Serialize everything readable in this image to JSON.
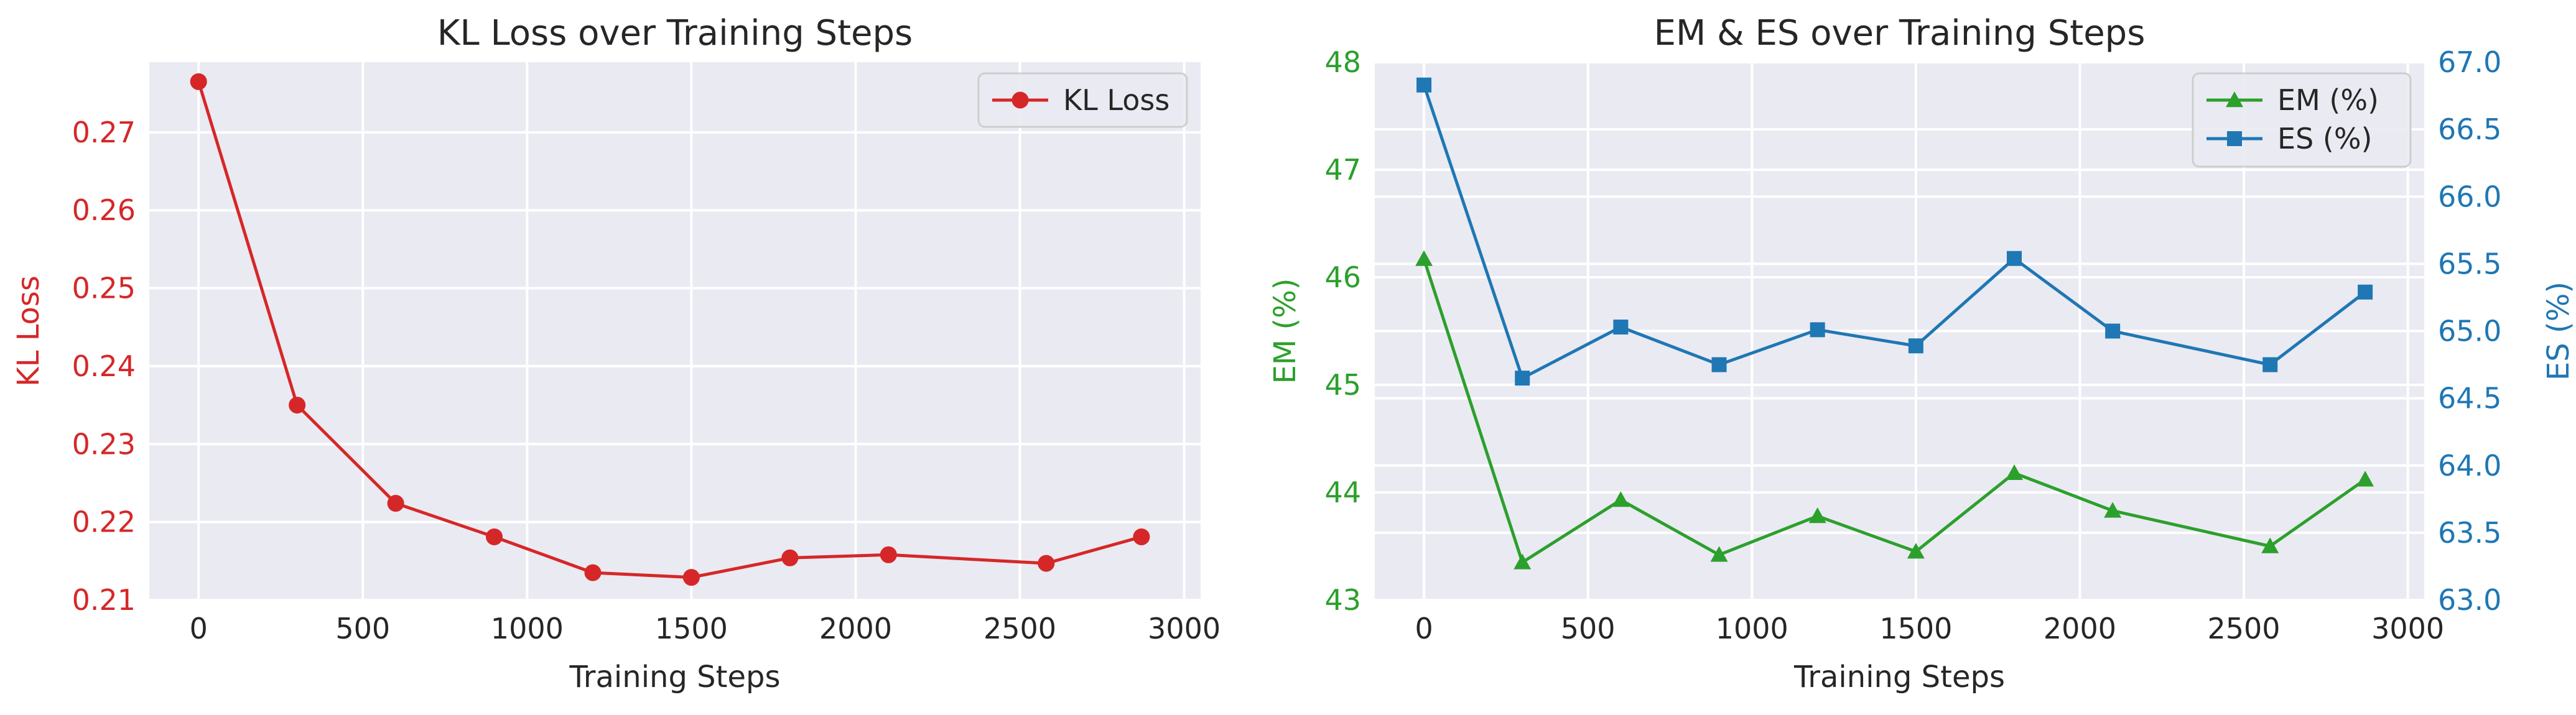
{
  "colors": {
    "plot_bg": "#eaeaf2",
    "grid": "#ffffff",
    "kl": "#d62728",
    "em": "#2ca02c",
    "es": "#1f77b4",
    "text": "#262626"
  },
  "chart_data": [
    {
      "type": "line",
      "title": "KL Loss over Training Steps",
      "xlabel": "Training Steps",
      "ylabel": "KL Loss",
      "xlim": [
        -150,
        3050
      ],
      "ylim": [
        0.21,
        0.279
      ],
      "xticks": [
        0,
        500,
        1000,
        1500,
        2000,
        2500,
        3000
      ],
      "yticks": [
        0.21,
        0.22,
        0.23,
        0.24,
        0.25,
        0.26,
        0.27
      ],
      "ytick_labels": [
        "0.21",
        "0.22",
        "0.23",
        "0.24",
        "0.25",
        "0.26",
        "0.27"
      ],
      "grid": true,
      "legend": "top-right",
      "series": [
        {
          "name": "KL Loss",
          "marker": "circle",
          "color": "#d62728",
          "x": [
            0,
            300,
            600,
            900,
            1200,
            1500,
            1800,
            2100,
            2580,
            2870
          ],
          "y": [
            0.2765,
            0.235,
            0.2224,
            0.2181,
            0.2135,
            0.2129,
            0.2154,
            0.2158,
            0.2147,
            0.2181
          ]
        }
      ]
    },
    {
      "type": "line",
      "title": "EM & ES over Training Steps",
      "xlabel": "Training Steps",
      "ylabel_left": "EM (%)",
      "ylabel_right": "ES (%)",
      "xlim": [
        -150,
        3050
      ],
      "ylim_left": [
        43,
        48
      ],
      "ylim_right": [
        63,
        67
      ],
      "xticks": [
        0,
        500,
        1000,
        1500,
        2000,
        2500,
        3000
      ],
      "yticks_left": [
        43,
        44,
        45,
        46,
        47,
        48
      ],
      "ytick_labels_left": [
        "43",
        "44",
        "45",
        "46",
        "47",
        "48"
      ],
      "yticks_right": [
        63.0,
        63.5,
        64.0,
        64.5,
        65.0,
        65.5,
        66.0,
        66.5,
        67.0
      ],
      "ytick_labels_right": [
        "63.0",
        "63.5",
        "64.0",
        "64.5",
        "65.0",
        "65.5",
        "66.0",
        "66.5",
        "67.0"
      ],
      "grid": true,
      "legend": "top-right",
      "series": [
        {
          "name": "EM (%)",
          "axis": "left",
          "marker": "triangle",
          "color": "#2ca02c",
          "x": [
            0,
            300,
            600,
            900,
            1200,
            1500,
            1800,
            2100,
            2580,
            2870
          ],
          "y": [
            46.17,
            43.35,
            43.93,
            43.42,
            43.78,
            43.45,
            44.18,
            43.83,
            43.5,
            44.12
          ]
        },
        {
          "name": "ES (%)",
          "axis": "right",
          "marker": "square",
          "color": "#1f77b4",
          "x": [
            0,
            300,
            600,
            900,
            1200,
            1500,
            1800,
            2100,
            2580,
            2870
          ],
          "y": [
            66.83,
            64.65,
            65.03,
            64.75,
            65.01,
            64.89,
            65.54,
            65.0,
            64.75,
            65.29
          ]
        }
      ]
    }
  ]
}
